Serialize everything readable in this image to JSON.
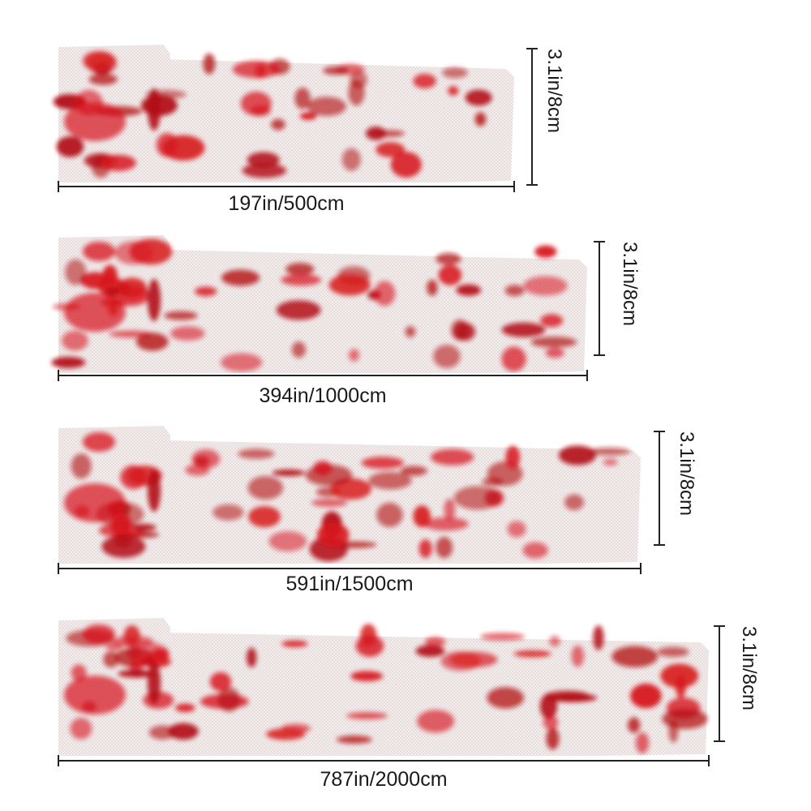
{
  "variants": [
    {
      "length_label": "197in/500cm",
      "height_label": "3.1in/8cm"
    },
    {
      "length_label": "394in/1000cm",
      "height_label": "3.1in/8cm"
    },
    {
      "length_label": "591in/1500cm",
      "height_label": "3.1in/8cm"
    },
    {
      "length_label": "787in/2000cm",
      "height_label": "3.1in/8cm"
    }
  ],
  "colors": {
    "cloth": "#f4eeee",
    "blood": "#d7141b",
    "blood_dark": "#b30d14",
    "line": "#222222"
  }
}
